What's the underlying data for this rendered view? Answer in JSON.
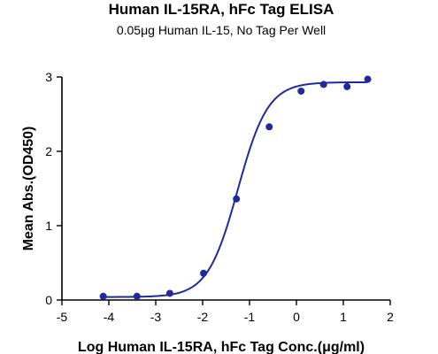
{
  "chart_data": {
    "type": "scatter",
    "title": "Human IL-15RA, hFc Tag ELISA",
    "subtitle": "0.05μg Human IL-15, No Tag Per Well",
    "xlabel": "Log Human IL-15RA, hFc Tag Conc.(μg/ml)",
    "ylabel": "Mean Abs.(OD450)",
    "xlim": [
      -5,
      2
    ],
    "ylim": [
      0,
      3
    ],
    "x_ticks": [
      -5,
      -4,
      -3,
      -2,
      -1,
      0,
      1,
      2
    ],
    "x_tick_labels": [
      "-5",
      "-4",
      "-3",
      "-2",
      "-1",
      "0",
      "1",
      "2"
    ],
    "y_ticks": [
      0,
      1,
      2,
      3
    ],
    "y_tick_labels": [
      "0",
      "1",
      "2",
      "3"
    ],
    "grid": false,
    "series": [
      {
        "color": "#1f2a9c",
        "points": [
          {
            "x": -4.12,
            "y": 0.05
          },
          {
            "x": -3.4,
            "y": 0.05
          },
          {
            "x": -2.7,
            "y": 0.09
          },
          {
            "x": -1.98,
            "y": 0.36
          },
          {
            "x": -1.28,
            "y": 1.36
          },
          {
            "x": -0.58,
            "y": 2.33
          },
          {
            "x": 0.1,
            "y": 2.81
          },
          {
            "x": 0.58,
            "y": 2.9
          },
          {
            "x": 1.08,
            "y": 2.87
          },
          {
            "x": 1.52,
            "y": 2.97
          }
        ],
        "fit": {
          "model": "4PL",
          "bottom": 0.04,
          "top": 2.93,
          "logEC50": -1.25,
          "hill": 1.35,
          "x_range": [
            -4.12,
            1.52
          ]
        }
      }
    ]
  }
}
